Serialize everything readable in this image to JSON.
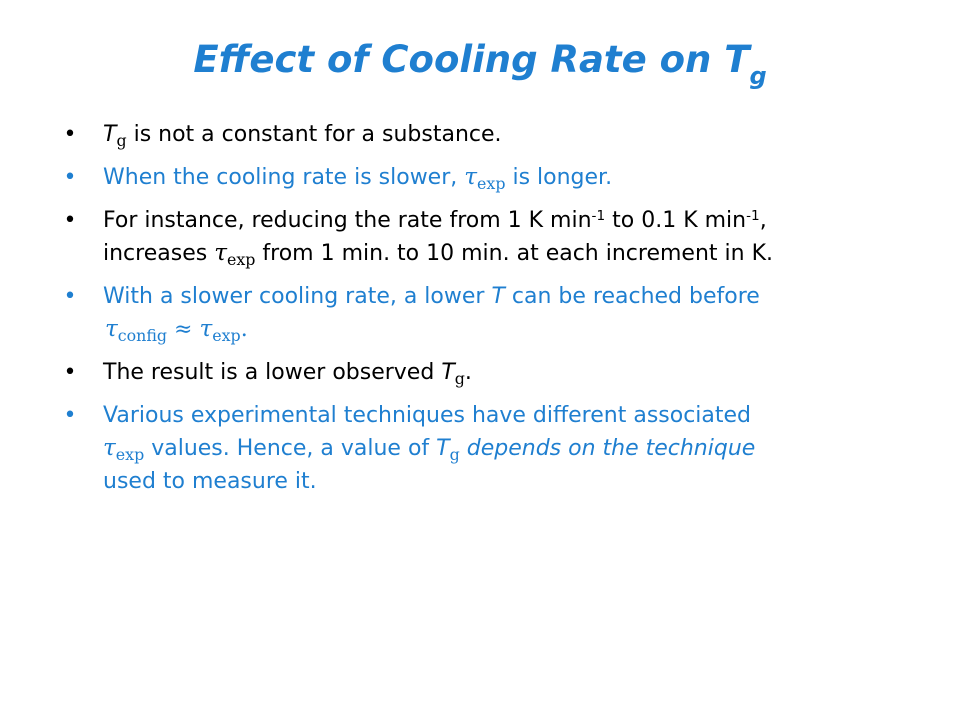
{
  "title": {
    "text": "Effect of Cooling Rate on T",
    "subscript": "g"
  },
  "bullet_char": "•",
  "bullets": {
    "b1": {
      "t_symbol": "T",
      "t_sub": "g",
      "text": " is not a constant for a substance."
    },
    "b2": {
      "text_before": "When the cooling rate is slower, ",
      "tau": "τ",
      "tau_sub": "exp",
      "text_after": " is longer."
    },
    "b3": {
      "line1_a": "For instance, reducing the rate from 1 K min",
      "sup1": "-1",
      "line1_b": " to 0.1 K min",
      "sup2": "-1",
      "line1_c": ",",
      "line2_a": "increases ",
      "tau": "τ",
      "tau_sub": "exp",
      "line2_b": " from 1 min. to 10 min. at each increment in K."
    },
    "b4": {
      "line1_a": "With a slower cooling rate, a lower ",
      "t_symbol": "T",
      "line1_b": " can be reached before",
      "tau1": "τ",
      "tau1_sub": "config",
      "approx": " ≈ ",
      "tau2": "τ",
      "tau2_sub": "exp",
      "end": "."
    },
    "b5": {
      "text": "The result is a lower observed ",
      "t_symbol": "T",
      "t_sub": "g",
      "end": "."
    },
    "b6": {
      "line1": "Various experimental techniques have different associated",
      "tau": "τ",
      "tau_sub": "exp",
      "line2_a": " values.  Hence, a value of ",
      "t_symbol": "T",
      "t_sub": "g",
      "line2_b": " ",
      "italic": "depends on the technique",
      "line3": "used to measure it."
    }
  },
  "colors": {
    "accent_blue": "#1f7fd0",
    "black": "#000000",
    "background": "#ffffff"
  }
}
